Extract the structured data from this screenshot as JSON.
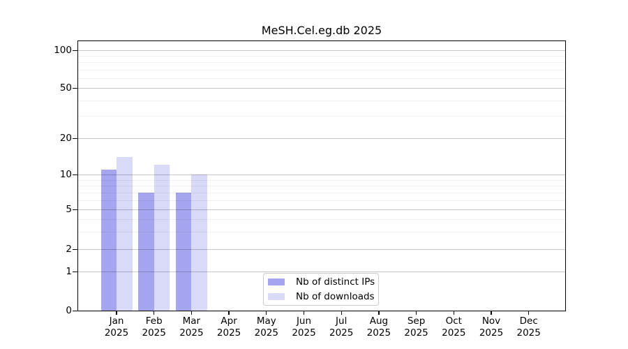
{
  "title": "MeSH.Cel.eg.db 2025",
  "chart_data": {
    "type": "bar",
    "title": "MeSH.Cel.eg.db 2025",
    "year": "2025",
    "categories": [
      "Jan",
      "Feb",
      "Mar",
      "Apr",
      "May",
      "Jun",
      "Jul",
      "Aug",
      "Sep",
      "Oct",
      "Nov",
      "Dec"
    ],
    "series": [
      {
        "name": "Nb of distinct IPs",
        "color": "#a5a5f0",
        "values": [
          11,
          7,
          7,
          0,
          0,
          0,
          0,
          0,
          0,
          0,
          0,
          0
        ]
      },
      {
        "name": "Nb of downloads",
        "color": "#d9d9f8",
        "values": [
          14,
          12,
          10,
          0,
          0,
          0,
          0,
          0,
          0,
          0,
          0,
          0
        ]
      }
    ],
    "y_axis": {
      "scale": "log",
      "ticks": [
        100,
        50,
        20,
        10,
        5,
        2,
        1,
        0
      ],
      "minor_ticks": [
        3,
        4,
        6,
        7,
        8,
        9,
        30,
        40,
        60,
        70,
        80,
        90
      ],
      "ylim": [
        0,
        118
      ]
    },
    "xlabel": "",
    "ylabel": "",
    "grid": true,
    "legend_position": "lower center"
  }
}
